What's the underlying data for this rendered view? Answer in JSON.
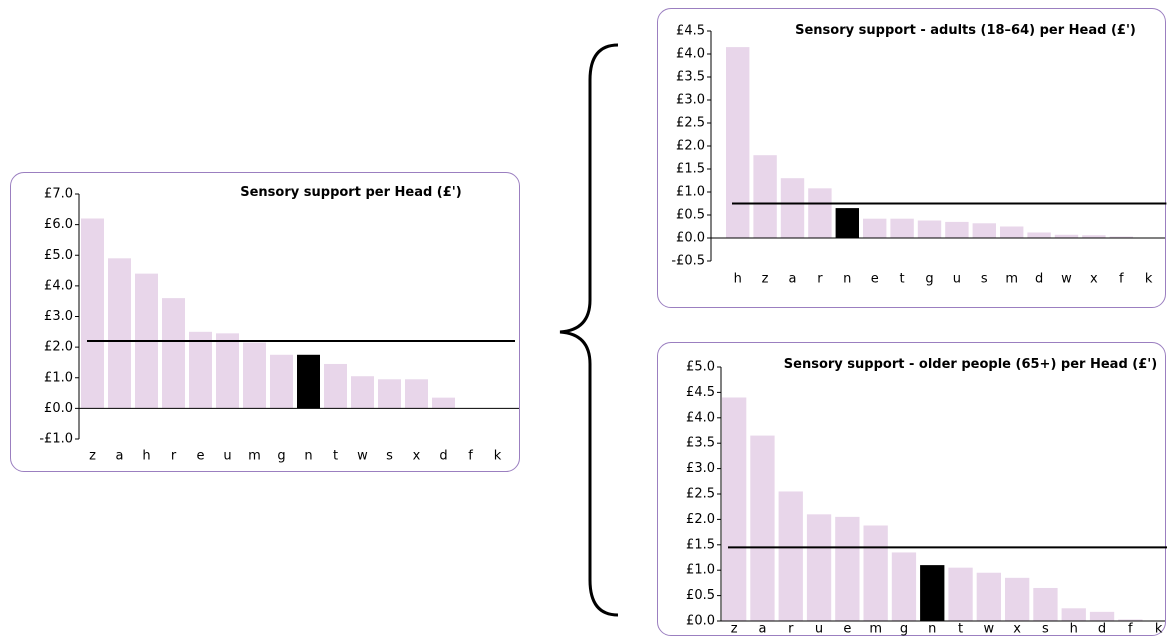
{
  "chart_data": [
    {
      "type": "bar",
      "title": "Sensory support per Head (£')",
      "categories": [
        "z",
        "a",
        "h",
        "r",
        "e",
        "u",
        "m",
        "g",
        "n",
        "t",
        "w",
        "s",
        "x",
        "d",
        "f",
        "k"
      ],
      "values": [
        6.2,
        4.9,
        4.4,
        3.6,
        2.5,
        2.45,
        2.15,
        1.75,
        1.75,
        1.45,
        1.05,
        0.95,
        0.95,
        0.35,
        0,
        0
      ],
      "colors": [
        "#e8d6ea",
        "#e8d6ea",
        "#e8d6ea",
        "#e8d6ea",
        "#e8d6ea",
        "#e8d6ea",
        "#e8d6ea",
        "#e8d6ea",
        "#000000",
        "#e8d6ea",
        "#e8d6ea",
        "#e8d6ea",
        "#e8d6ea",
        "#e8d6ea",
        "#e8d6ea",
        "#e8d6ea"
      ],
      "reference_line": 2.2,
      "ylim": [
        -1,
        7
      ],
      "yticks": [
        {
          "value": -1,
          "label": "-£1.0"
        },
        {
          "value": 0,
          "label": "£0.0"
        },
        {
          "value": 1,
          "label": "£1.0"
        },
        {
          "value": 2,
          "label": "£2.0"
        },
        {
          "value": 3,
          "label": "£3.0"
        },
        {
          "value": 4,
          "label": "£4.0"
        },
        {
          "value": 5,
          "label": "£5.0"
        },
        {
          "value": 6,
          "label": "£6.0"
        },
        {
          "value": 7,
          "label": "£7.0"
        }
      ]
    },
    {
      "type": "bar",
      "title": "Sensory support - adults (18–64)  per Head (£')",
      "categories": [
        "h",
        "z",
        "a",
        "r",
        "n",
        "e",
        "t",
        "g",
        "u",
        "s",
        "m",
        "d",
        "w",
        "x",
        "f",
        "k"
      ],
      "values": [
        4.15,
        1.8,
        1.3,
        1.08,
        0.65,
        0.42,
        0.42,
        0.38,
        0.35,
        0.32,
        0.25,
        0.12,
        0.07,
        0.06,
        0.03,
        0
      ],
      "colors": [
        "#e8d6ea",
        "#e8d6ea",
        "#e8d6ea",
        "#e8d6ea",
        "#000000",
        "#e8d6ea",
        "#e8d6ea",
        "#e8d6ea",
        "#e8d6ea",
        "#e8d6ea",
        "#e8d6ea",
        "#e8d6ea",
        "#e8d6ea",
        "#e8d6ea",
        "#e8d6ea",
        "#e8d6ea"
      ],
      "reference_line": 0.75,
      "ylim": [
        -0.5,
        4.5
      ],
      "yticks": [
        {
          "value": -0.5,
          "label": "-£0.5"
        },
        {
          "value": 0,
          "label": "£0.0"
        },
        {
          "value": 0.5,
          "label": "£0.5"
        },
        {
          "value": 1,
          "label": "£1.0"
        },
        {
          "value": 1.5,
          "label": "£1.5"
        },
        {
          "value": 2,
          "label": "£2.0"
        },
        {
          "value": 2.5,
          "label": "£2.5"
        },
        {
          "value": 3,
          "label": "£3.0"
        },
        {
          "value": 3.5,
          "label": "£3.5"
        },
        {
          "value": 4,
          "label": "£4.0"
        },
        {
          "value": 4.5,
          "label": "£4.5"
        }
      ]
    },
    {
      "type": "bar",
      "title": "Sensory support - older people (65+) per Head (£')",
      "categories": [
        "z",
        "a",
        "r",
        "u",
        "e",
        "m",
        "g",
        "n",
        "t",
        "w",
        "x",
        "s",
        "h",
        "d",
        "f",
        "k"
      ],
      "values": [
        4.4,
        3.65,
        2.55,
        2.1,
        2.05,
        1.88,
        1.35,
        1.1,
        1.05,
        0.95,
        0.85,
        0.65,
        0.25,
        0.18,
        0.03,
        0
      ],
      "colors": [
        "#e8d6ea",
        "#e8d6ea",
        "#e8d6ea",
        "#e8d6ea",
        "#e8d6ea",
        "#e8d6ea",
        "#e8d6ea",
        "#000000",
        "#e8d6ea",
        "#e8d6ea",
        "#e8d6ea",
        "#e8d6ea",
        "#e8d6ea",
        "#e8d6ea",
        "#e8d6ea",
        "#e8d6ea"
      ],
      "reference_line": 1.45,
      "ylim": [
        0,
        5
      ],
      "yticks": [
        {
          "value": 0,
          "label": "£0.0"
        },
        {
          "value": 0.5,
          "label": "£0.5"
        },
        {
          "value": 1,
          "label": "£1.0"
        },
        {
          "value": 1.5,
          "label": "£1.5"
        },
        {
          "value": 2,
          "label": "£2.0"
        },
        {
          "value": 2.5,
          "label": "£2.5"
        },
        {
          "value": 3,
          "label": "£3.0"
        },
        {
          "value": 3.5,
          "label": "£3.5"
        },
        {
          "value": 4,
          "label": "£4.0"
        },
        {
          "value": 4.5,
          "label": "£4.5"
        },
        {
          "value": 5,
          "label": "£5.0"
        }
      ]
    }
  ]
}
